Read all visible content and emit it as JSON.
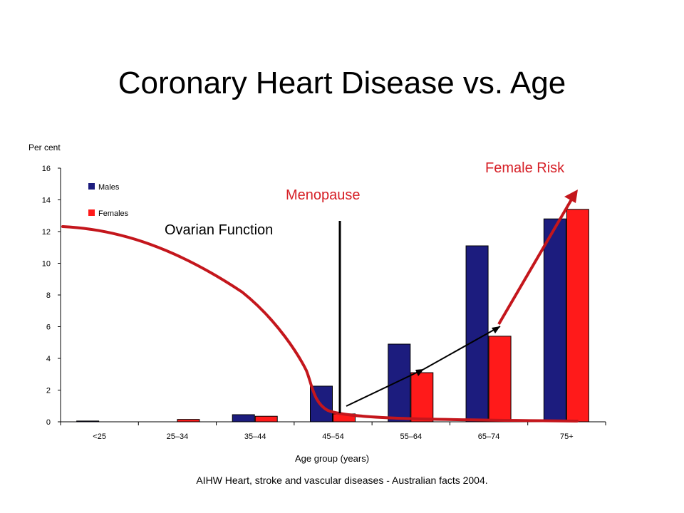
{
  "slide": {
    "title": "Coronary Heart Disease vs. Age",
    "source": "AIHW Heart, stroke and vascular diseases - Australian facts 2004."
  },
  "annotations": {
    "ovarian_function": "Ovarian Function",
    "menopause": "Menopause",
    "female_risk": "Female Risk"
  },
  "colors": {
    "males": "#1c1c7e",
    "females": "#ff1a1a",
    "overlay_red": "#c4161c",
    "text_red": "#d62027"
  },
  "chart_data": {
    "type": "bar",
    "ylabel": "Per cent",
    "xlabel": "Age group (years)",
    "ylim": [
      0,
      16
    ],
    "yticks": [
      0,
      2,
      4,
      6,
      8,
      10,
      12,
      14,
      16
    ],
    "categories": [
      "<25",
      "25–34",
      "35–44",
      "45–54",
      "55–64",
      "65–74",
      "75+"
    ],
    "series": [
      {
        "name": "Males",
        "values": [
          0.05,
          0.0,
          0.45,
          2.25,
          4.9,
          11.1,
          12.8
        ]
      },
      {
        "name": "Females",
        "values": [
          0.0,
          0.15,
          0.35,
          0.5,
          3.1,
          5.4,
          13.4
        ]
      }
    ],
    "legend_position": "top-left",
    "grid": false
  }
}
